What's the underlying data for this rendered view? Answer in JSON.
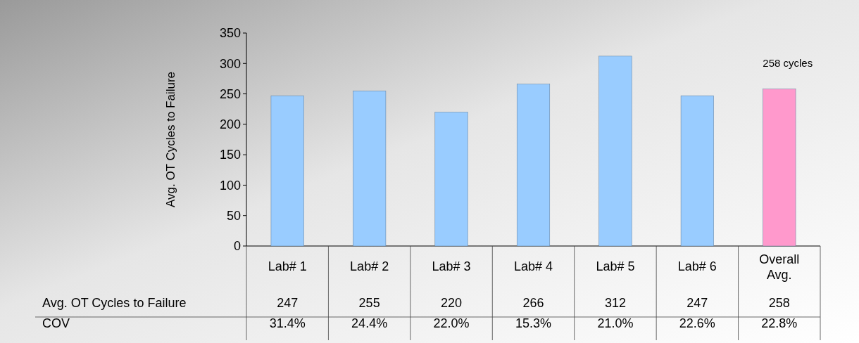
{
  "chart_data": {
    "type": "bar",
    "ylabel": "Avg. OT Cycles to Failure",
    "categories": [
      "Lab# 1",
      "Lab# 2",
      "Lab# 3",
      "Lab# 4",
      "Lab# 5",
      "Lab# 6",
      "Overall Avg."
    ],
    "series": [
      {
        "name": "Avg. OT Cycles to Failure",
        "values": [
          247,
          255,
          220,
          266,
          312,
          247,
          258
        ],
        "colors": [
          "#99ccff",
          "#99ccff",
          "#99ccff",
          "#99ccff",
          "#99ccff",
          "#99ccff",
          "#ff99cc"
        ]
      }
    ],
    "data_labels": true,
    "ylim": [
      0,
      350
    ],
    "yticks": [
      0,
      50,
      100,
      150,
      200,
      250,
      300,
      350
    ],
    "grid": false,
    "annotations": [
      {
        "text": "258 cycles",
        "x": "Overall Avg.",
        "y": 258
      },
      "COV",
      "31.4%",
      "24.4%",
      "22.0%",
      "15.3%",
      "21.0%",
      "22.6%",
      "22.8%"
    ]
  }
}
